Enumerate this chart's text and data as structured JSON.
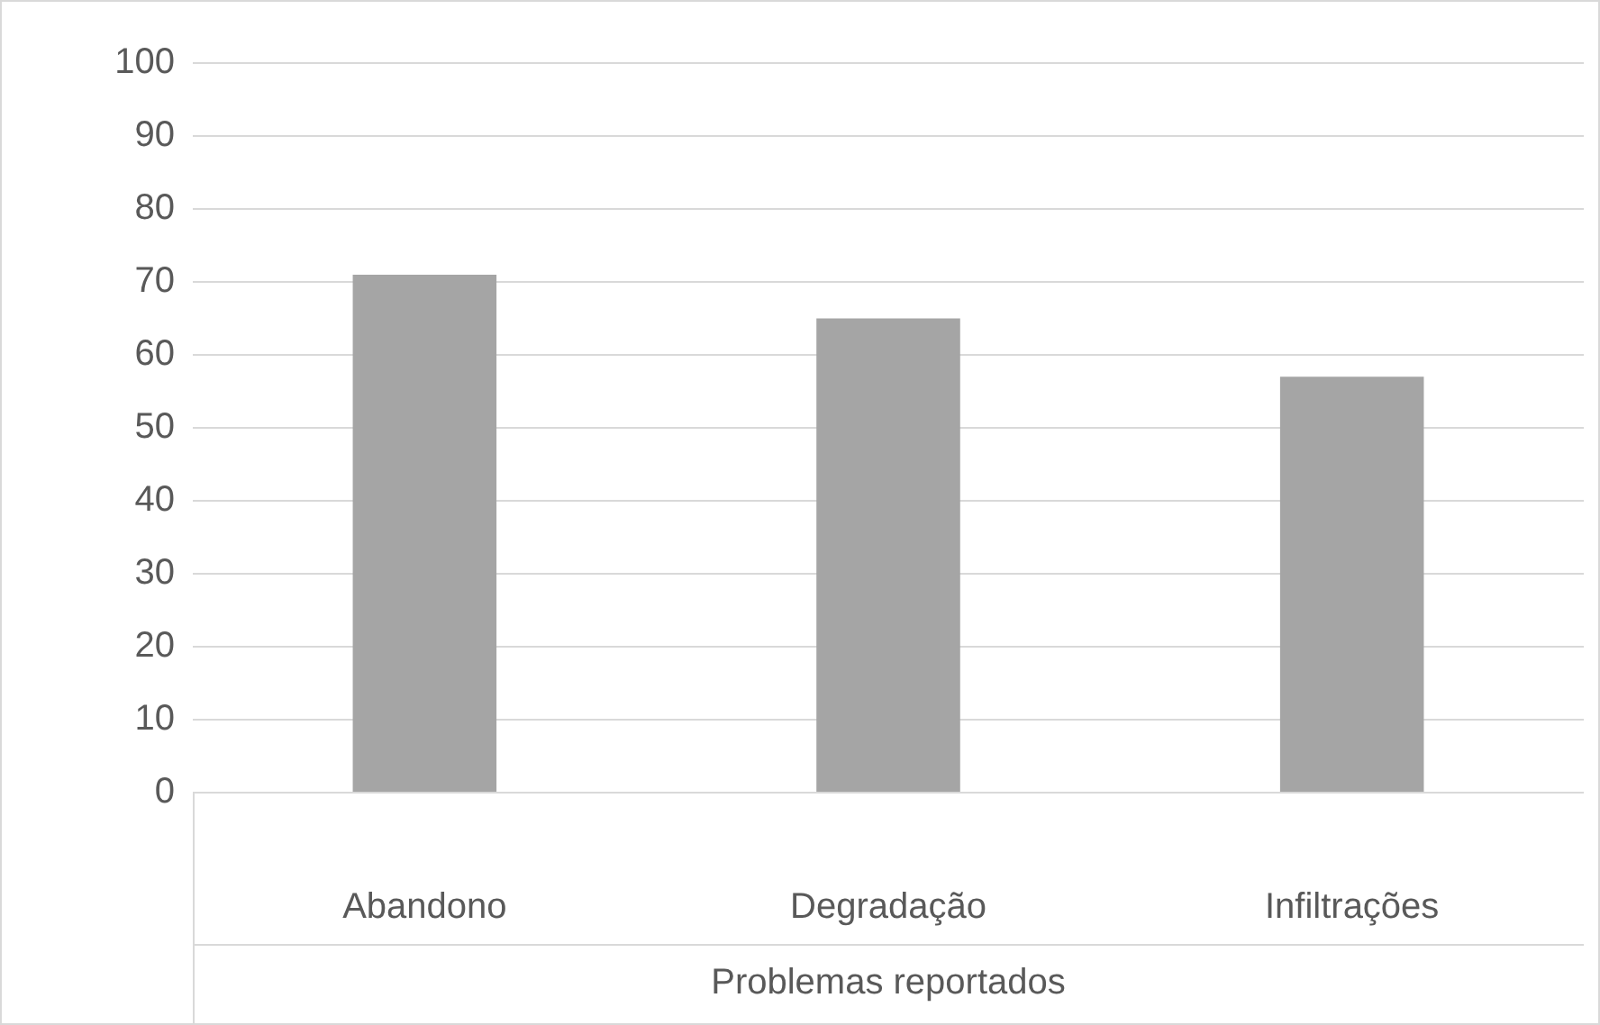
{
  "chart_data": {
    "type": "bar",
    "xlabel": "Problemas reportados",
    "categories": [
      "Abandono",
      "Degradação",
      "Infiltrações"
    ],
    "values": [
      71,
      65,
      57
    ],
    "color": "#a5a5a5",
    "ylim": [
      0,
      100
    ],
    "yticks": [
      0,
      10,
      20,
      30,
      40,
      50,
      60,
      70,
      80,
      90,
      100
    ],
    "grid": "y"
  }
}
